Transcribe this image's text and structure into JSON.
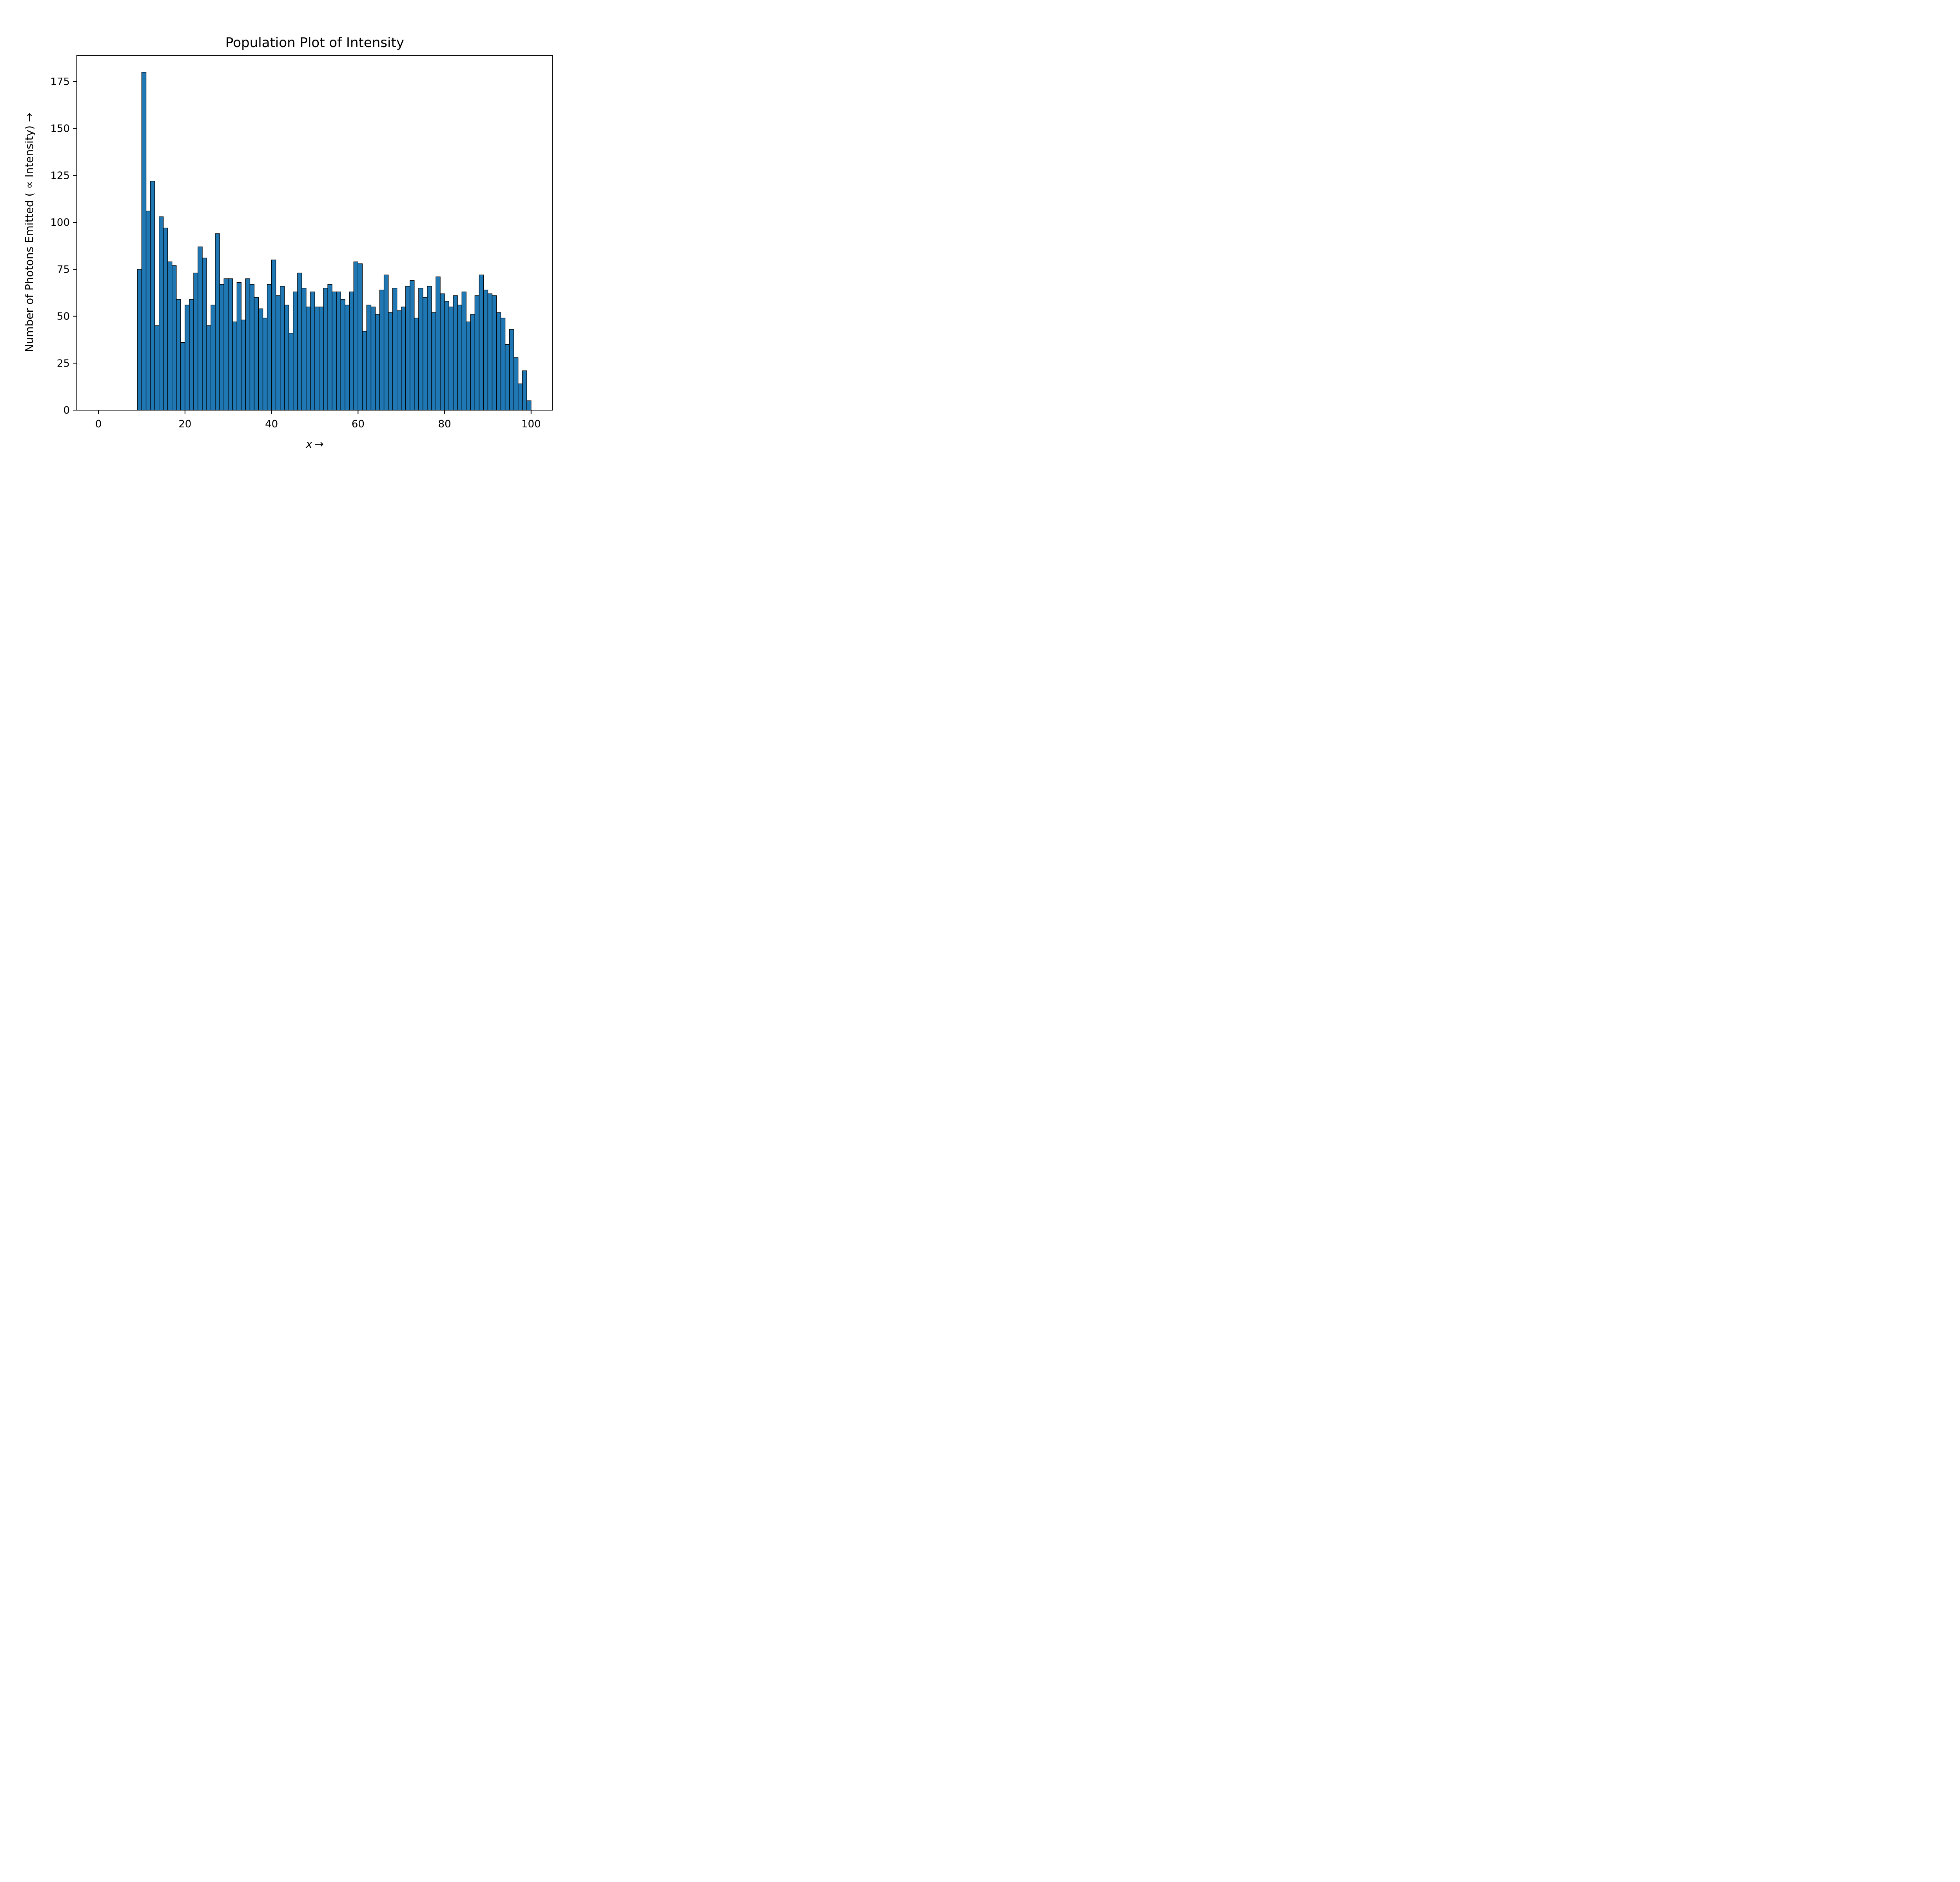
{
  "chart_data": {
    "type": "bar",
    "title": "Population Plot of Intensity",
    "xlabel": "x →",
    "ylabel": "Number of Photons Emitted ( ∝  Intensity) →",
    "xlim": [
      -5,
      105
    ],
    "ylim": [
      0,
      189
    ],
    "xticks": [
      0,
      20,
      40,
      60,
      80,
      100
    ],
    "yticks": [
      0,
      25,
      50,
      75,
      100,
      125,
      150,
      175
    ],
    "bin_start": 9,
    "bin_width": 1,
    "values": [
      75,
      180,
      106,
      122,
      45,
      103,
      97,
      79,
      77,
      59,
      36,
      56,
      59,
      73,
      87,
      81,
      45,
      56,
      94,
      67,
      70,
      70,
      47,
      68,
      48,
      70,
      67,
      60,
      54,
      49,
      67,
      80,
      61,
      66,
      56,
      41,
      63,
      73,
      65,
      55,
      63,
      55,
      55,
      65,
      67,
      63,
      63,
      59,
      56,
      63,
      79,
      78,
      42,
      56,
      55,
      51,
      64,
      72,
      52,
      65,
      53,
      55,
      66,
      69,
      49,
      65,
      60,
      66,
      52,
      71,
      62,
      58,
      55,
      61,
      56,
      63,
      47,
      51,
      61,
      72,
      64,
      62,
      61,
      52,
      49,
      35,
      43,
      28,
      14,
      21,
      5
    ],
    "grid": false,
    "bar_color": "#1f77b4",
    "edge_color": "#000000"
  }
}
